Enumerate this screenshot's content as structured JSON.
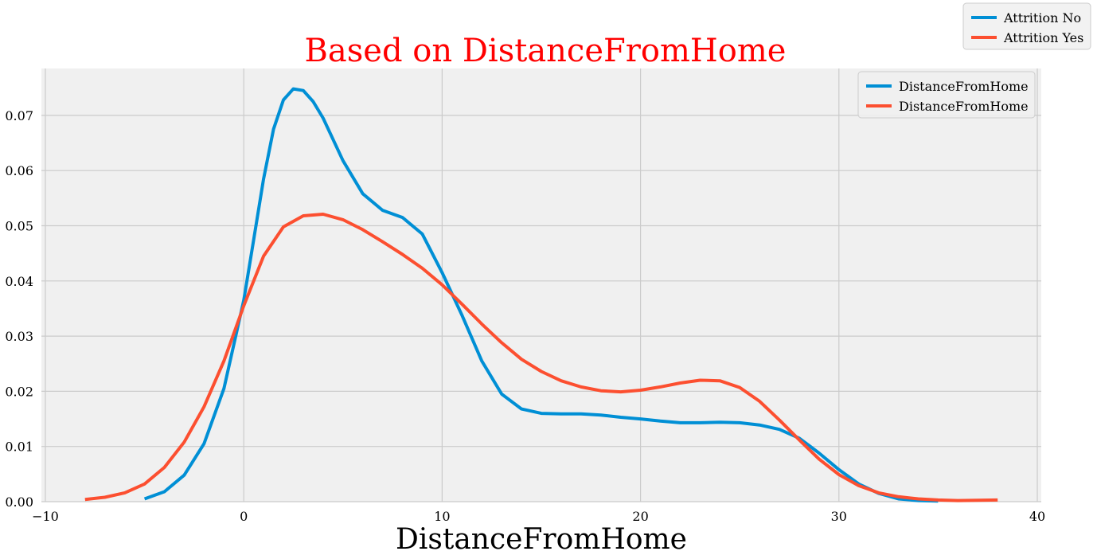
{
  "chart_data": {
    "type": "line",
    "title": "Based on DistanceFromHome",
    "xlabel": "DistanceFromHome",
    "ylabel": "",
    "xlim": [
      -10.2,
      40.2
    ],
    "ylim": [
      0,
      0.0785
    ],
    "x_ticks": [
      -10,
      0,
      10,
      20,
      30,
      40
    ],
    "x_tick_labels": [
      "−10",
      "0",
      "10",
      "20",
      "30",
      "40"
    ],
    "y_ticks": [
      0,
      0.01,
      0.02,
      0.03,
      0.04,
      0.05,
      0.06,
      0.07
    ],
    "y_tick_labels": [
      "0.00",
      "0.01",
      "0.02",
      "0.03",
      "0.04",
      "0.05",
      "0.06",
      "0.07"
    ],
    "grid": true,
    "legend_inner_position": "top-right",
    "legend_outer_position": "figure top-right",
    "series": [
      {
        "name": "DistanceFromHome",
        "color": "#008fd5",
        "points": [
          [
            -5.0,
            0.0005
          ],
          [
            -4.0,
            0.0018
          ],
          [
            -3.0,
            0.0048
          ],
          [
            -2.0,
            0.0105
          ],
          [
            -1.0,
            0.0205
          ],
          [
            0.0,
            0.0365
          ],
          [
            0.5,
            0.0475
          ],
          [
            1.0,
            0.0585
          ],
          [
            1.5,
            0.0675
          ],
          [
            2.0,
            0.0728
          ],
          [
            2.5,
            0.0748
          ],
          [
            3.0,
            0.0745
          ],
          [
            3.5,
            0.0725
          ],
          [
            4.0,
            0.0695
          ],
          [
            5.0,
            0.0618
          ],
          [
            6.0,
            0.0558
          ],
          [
            7.0,
            0.0528
          ],
          [
            8.0,
            0.0515
          ],
          [
            9.0,
            0.0485
          ],
          [
            10.0,
            0.0415
          ],
          [
            11.0,
            0.0338
          ],
          [
            12.0,
            0.0255
          ],
          [
            13.0,
            0.0195
          ],
          [
            14.0,
            0.0168
          ],
          [
            15.0,
            0.016
          ],
          [
            16.0,
            0.0159
          ],
          [
            17.0,
            0.0159
          ],
          [
            18.0,
            0.0157
          ],
          [
            19.0,
            0.0153
          ],
          [
            20.0,
            0.015
          ],
          [
            21.0,
            0.0146
          ],
          [
            22.0,
            0.0143
          ],
          [
            23.0,
            0.0143
          ],
          [
            24.0,
            0.0144
          ],
          [
            25.0,
            0.0143
          ],
          [
            26.0,
            0.0139
          ],
          [
            27.0,
            0.0131
          ],
          [
            28.0,
            0.0115
          ],
          [
            29.0,
            0.0088
          ],
          [
            30.0,
            0.0058
          ],
          [
            31.0,
            0.0032
          ],
          [
            32.0,
            0.0015
          ],
          [
            33.0,
            0.0005
          ],
          [
            34.0,
            0.0002
          ],
          [
            35.0,
            0.0001
          ]
        ]
      },
      {
        "name": "DistanceFromHome",
        "color": "#fc4f30",
        "points": [
          [
            -8.0,
            0.0004
          ],
          [
            -7.0,
            0.0008
          ],
          [
            -6.0,
            0.0016
          ],
          [
            -5.0,
            0.0032
          ],
          [
            -4.0,
            0.0062
          ],
          [
            -3.0,
            0.0108
          ],
          [
            -2.0,
            0.0172
          ],
          [
            -1.0,
            0.0255
          ],
          [
            0.0,
            0.0355
          ],
          [
            1.0,
            0.0445
          ],
          [
            2.0,
            0.0498
          ],
          [
            3.0,
            0.0518
          ],
          [
            4.0,
            0.0521
          ],
          [
            5.0,
            0.0511
          ],
          [
            6.0,
            0.0493
          ],
          [
            7.0,
            0.0471
          ],
          [
            8.0,
            0.0448
          ],
          [
            9.0,
            0.0423
          ],
          [
            10.0,
            0.0393
          ],
          [
            11.0,
            0.0358
          ],
          [
            12.0,
            0.0322
          ],
          [
            13.0,
            0.0288
          ],
          [
            14.0,
            0.0258
          ],
          [
            15.0,
            0.0236
          ],
          [
            16.0,
            0.0219
          ],
          [
            17.0,
            0.0208
          ],
          [
            18.0,
            0.0201
          ],
          [
            19.0,
            0.0199
          ],
          [
            20.0,
            0.0202
          ],
          [
            21.0,
            0.0208
          ],
          [
            22.0,
            0.0215
          ],
          [
            23.0,
            0.022
          ],
          [
            24.0,
            0.0219
          ],
          [
            25.0,
            0.0207
          ],
          [
            26.0,
            0.0182
          ],
          [
            27.0,
            0.0148
          ],
          [
            28.0,
            0.0112
          ],
          [
            29.0,
            0.0077
          ],
          [
            30.0,
            0.0049
          ],
          [
            31.0,
            0.0029
          ],
          [
            32.0,
            0.0016
          ],
          [
            33.0,
            0.0009
          ],
          [
            34.0,
            0.0005
          ],
          [
            35.0,
            0.0003
          ],
          [
            36.0,
            0.0002
          ],
          [
            38.0,
            0.0003
          ]
        ]
      }
    ],
    "inner_legend": [
      {
        "label": "DistanceFromHome",
        "color": "#008fd5"
      },
      {
        "label": "DistanceFromHome",
        "color": "#fc4f30"
      }
    ],
    "outer_legend": [
      {
        "label": "Attrition No",
        "color": "#008fd5"
      },
      {
        "label": "Attrition Yes",
        "color": "#fc4f30"
      }
    ],
    "colors": {
      "plot_background": "#f0f0f0",
      "grid": "#cbcbcb",
      "title": "#ff0000",
      "text": "#000000"
    }
  }
}
